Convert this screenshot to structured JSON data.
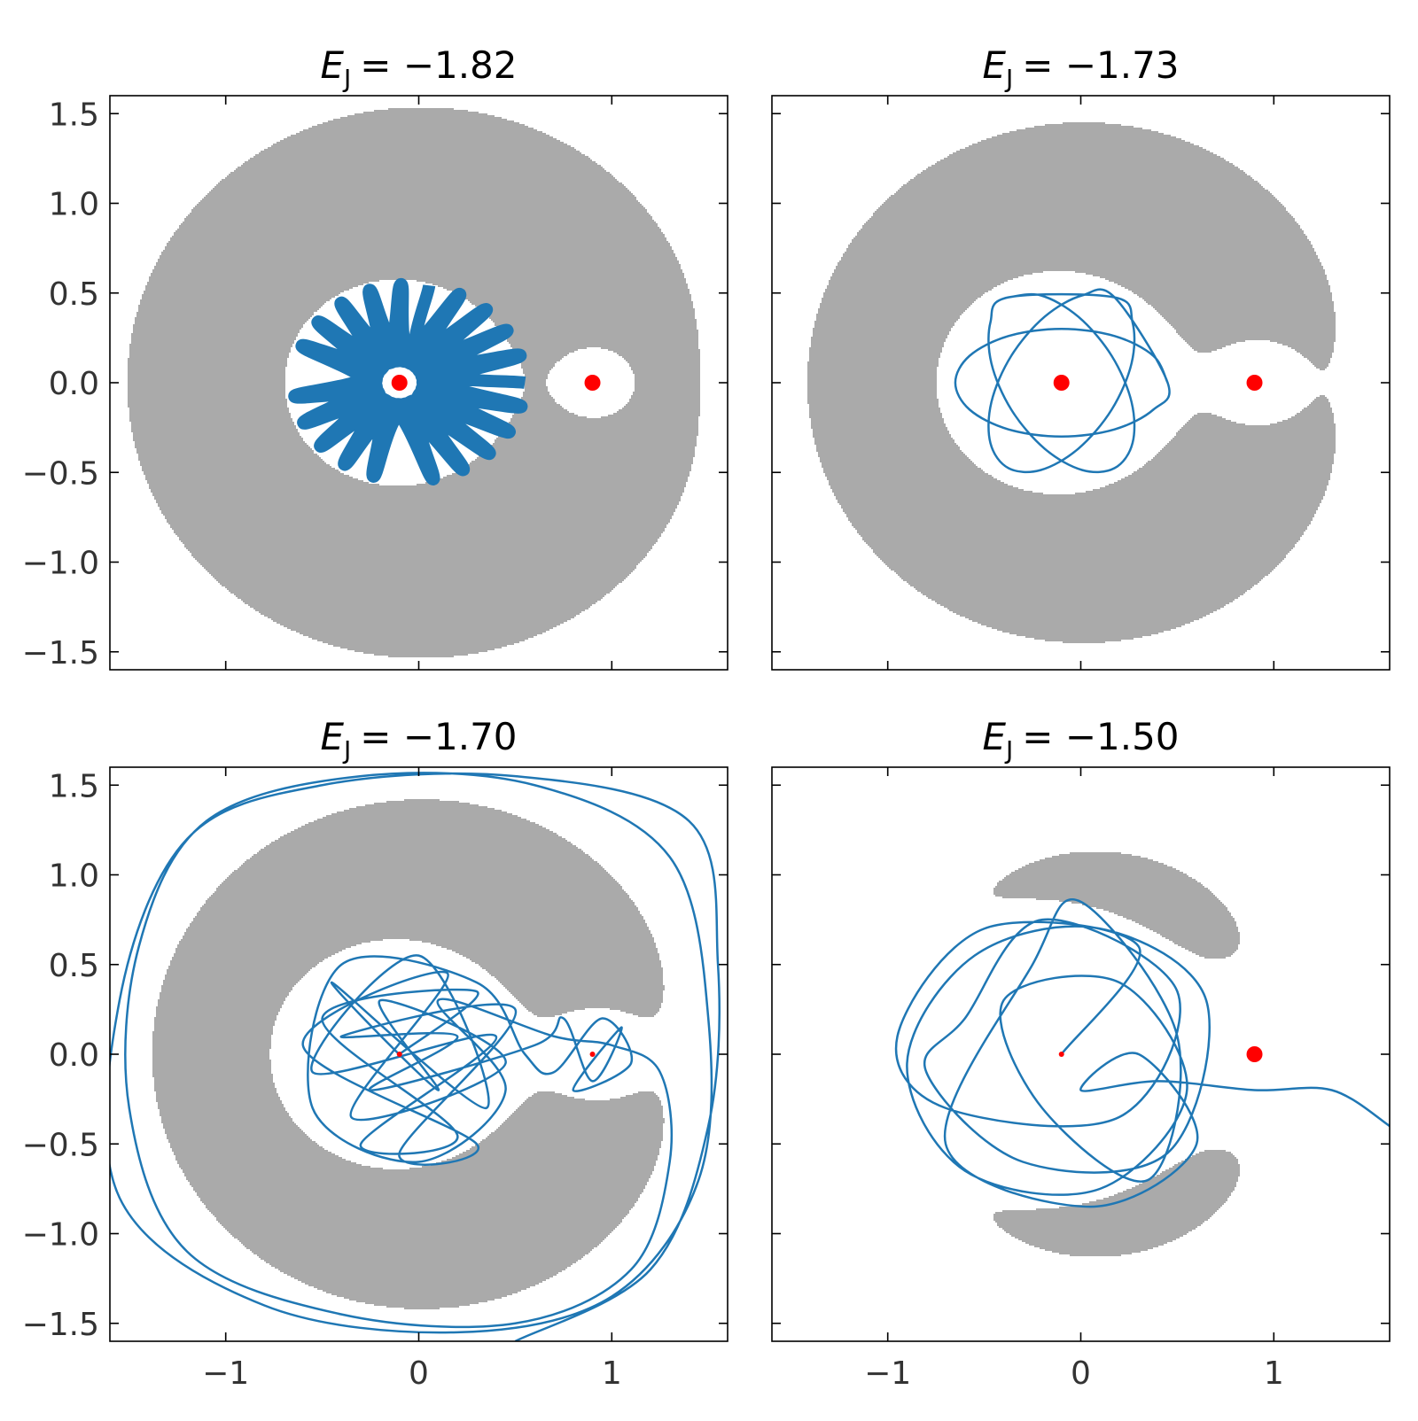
{
  "chart_data": [
    {
      "type": "orbit",
      "title": {
        "symbol": "E",
        "subscript": "J",
        "rest": "= −1.82"
      },
      "energy": -1.82,
      "xlim": [
        -1.6,
        1.6
      ],
      "ylim": [
        -1.6,
        1.6
      ],
      "xticks": [
        -1,
        0,
        1
      ],
      "yticks": [
        {
          "value": -1.5,
          "label": "−1.5"
        },
        {
          "value": -1.0,
          "label": "−1.0"
        },
        {
          "value": -0.5,
          "label": "−0.5"
        },
        {
          "value": 0.0,
          "label": "0.0"
        },
        {
          "value": 0.5,
          "label": "0.5"
        },
        {
          "value": 1.0,
          "label": "1.0"
        },
        {
          "value": 1.5,
          "label": "1.5"
        }
      ],
      "region_color": "#aaaaaa",
      "masses": {
        "color": "red",
        "x": [
          -0.1,
          0.9
        ],
        "y": [
          0,
          0
        ],
        "sizes": [
          9,
          9
        ]
      },
      "orbit": {
        "color": "#1f77b4",
        "line_width": 14,
        "x": [
          0.55,
          -0.018,
          -0.092,
          -0.193,
          -0.644,
          -0.169,
          0.075,
          0.003,
          0.527,
          -0.046,
          -0.255,
          -0.211,
          -0.598,
          -0.139,
          0.231,
          0.016,
          0.459,
          -0.077,
          -0.403,
          -0.219,
          -0.51,
          -0.106,
          0.367,
          0.02,
          0.351,
          -0.11,
          -0.523,
          -0.219,
          -0.385,
          -0.073,
          0.47,
          0.015,
          0.213,
          -0.143,
          -0.606,
          -0.209,
          -0.235,
          -0.042,
          0.532,
          0.001,
          0.054
        ],
        "y": [
          0,
          0.088,
          0.549,
          0.075,
          -0.076,
          -0.098,
          -0.538,
          -0.062,
          0.152,
          0.107,
          0.517,
          0.047,
          -0.224,
          -0.114,
          -0.486,
          -0.031,
          0.292,
          0.118,
          0.445,
          0.015,
          -0.354,
          -0.12,
          -0.395,
          0.002,
          0.409,
          0.12,
          0.339,
          -0.019,
          -0.456,
          -0.117,
          -0.275,
          0.035,
          0.494,
          0.112,
          0.206,
          -0.051,
          -0.523,
          -0.105,
          -0.133,
          0.065,
          0.542
        ]
      }
    },
    {
      "type": "orbit",
      "title": {
        "symbol": "E",
        "subscript": "J",
        "rest": "= −1.73"
      },
      "energy": -1.73,
      "xlim": [
        -1.6,
        1.6
      ],
      "ylim": [
        -1.6,
        1.6
      ],
      "xticks": [
        -1,
        0,
        1
      ],
      "yticks": [
        -1.5,
        -1.0,
        -0.5,
        0.0,
        0.5,
        1.0,
        1.5
      ],
      "region_color": "#aaaaaa",
      "masses": {
        "color": "red",
        "x": [
          -0.1,
          0.9
        ],
        "y": [
          0,
          0
        ],
        "sizes": [
          9,
          9
        ]
      },
      "orbit": {
        "color": "#1f77b4",
        "line_width": 2.5,
        "x": [
          0.45,
          0.376,
          0.175,
          -0.1,
          -0.375,
          -0.576,
          -0.65,
          -0.576,
          -0.375,
          -0.1,
          0.175,
          0.376,
          0.45,
          0.175,
          0.008,
          -0.187,
          -0.36,
          -0.463,
          -0.468,
          -0.375,
          -0.208,
          -0.013,
          0.16,
          0.263,
          0.268,
          0.175,
          -0.375,
          -0.468,
          -0.463,
          -0.36,
          -0.187,
          0.008,
          0.175,
          0.268,
          0.263,
          0.16,
          -0.013,
          -0.208,
          -0.375
        ],
        "y": [
          0,
          0.15,
          0.26,
          0.3,
          0.26,
          0.15,
          0,
          -0.15,
          -0.26,
          -0.3,
          -0.26,
          -0.15,
          0,
          0.476,
          0.487,
          0.368,
          0.15,
          -0.108,
          -0.337,
          -0.476,
          -0.487,
          -0.368,
          -0.15,
          0.108,
          0.337,
          0.476,
          0.476,
          0.337,
          0.108,
          -0.15,
          -0.368,
          -0.487,
          -0.476,
          -0.337,
          -0.108,
          0.15,
          0.368,
          0.487,
          0.476
        ]
      }
    },
    {
      "type": "orbit",
      "title": {
        "symbol": "E",
        "subscript": "J",
        "rest": "= −1.70"
      },
      "energy": -1.7,
      "xlim": [
        -1.6,
        1.6
      ],
      "ylim": [
        -1.6,
        1.6
      ],
      "xticks": [
        {
          "value": -1,
          "label": "−1"
        },
        {
          "value": 0,
          "label": "0"
        },
        {
          "value": 1,
          "label": "1"
        }
      ],
      "yticks": [
        {
          "value": -1.5,
          "label": "−1.5"
        },
        {
          "value": -1.0,
          "label": "−1.0"
        },
        {
          "value": -0.5,
          "label": "−0.5"
        },
        {
          "value": 0.0,
          "label": "0.0"
        },
        {
          "value": 0.5,
          "label": "0.5"
        },
        {
          "value": 1.0,
          "label": "1.0"
        },
        {
          "value": 1.5,
          "label": "1.5"
        }
      ],
      "region_color": "#aaaaaa",
      "masses": {
        "color": "red",
        "x": [
          -0.1,
          0.9
        ],
        "y": [
          0,
          0
        ],
        "sizes": [
          3,
          3
        ]
      },
      "orbit": {
        "color": "#1f77b4",
        "line_width": 2.5,
        "x": [
          -0.1,
          0.3,
          -0.5,
          0.2,
          -0.3,
          0.4,
          -0.55,
          0.0,
          0.35,
          -0.45,
          0.1,
          -0.2,
          0.45,
          -0.35,
          0.15,
          -0.6,
          0.3,
          -0.1,
          0.5,
          -0.4,
          0.2,
          -0.25,
          0.6,
          0.75,
          0.9,
          1.05,
          0.8,
          1.1,
          0.95,
          0.7,
          0.55,
          0.3,
          -0.4,
          -0.55,
          0.0,
          0.45,
          0.1,
          0.7,
          1.0,
          1.25,
          1.3,
          1.1,
          0.5,
          -0.4,
          -1.2,
          -1.5,
          -1.45,
          -1.1,
          -0.3,
          0.6,
          1.3,
          1.5,
          1.45,
          1.0,
          0.2,
          -0.8,
          -1.55,
          -1.55,
          -1.2,
          -0.5,
          0.5,
          1.4,
          1.55,
          1.5,
          1.2,
          0.5
        ],
        "y": [
          0.0,
          0.35,
          0.2,
          -0.45,
          -0.5,
          0.1,
          -0.1,
          0.55,
          -0.3,
          0.4,
          -0.2,
          0.3,
          -0.05,
          -0.35,
          0.45,
          0.05,
          -0.5,
          -0.55,
          0.25,
          0.1,
          0.1,
          -0.2,
          0.05,
          0.2,
          -0.15,
          0.15,
          -0.2,
          -0.05,
          0.2,
          -0.1,
          0.0,
          0.4,
          0.5,
          -0.3,
          -0.6,
          -0.2,
          0.3,
          0.1,
          0.05,
          -0.1,
          -0.6,
          -1.2,
          -1.5,
          -1.45,
          -1.1,
          -0.3,
          0.6,
          1.3,
          1.55,
          1.5,
          1.1,
          0.2,
          -0.7,
          -1.35,
          -1.55,
          -1.4,
          -0.8,
          0.3,
          1.2,
          1.5,
          1.55,
          1.3,
          0.5,
          -0.4,
          -1.2,
          -1.6
        ]
      }
    },
    {
      "type": "orbit",
      "title": {
        "symbol": "E",
        "subscript": "J",
        "rest": "= −1.50"
      },
      "energy": -1.5,
      "xlim": [
        -1.6,
        1.6
      ],
      "ylim": [
        -1.6,
        1.6
      ],
      "xticks": [
        {
          "value": -1,
          "label": "−1"
        },
        {
          "value": 0,
          "label": "0"
        },
        {
          "value": 1,
          "label": "1"
        }
      ],
      "yticks": [
        -1.5,
        -1.0,
        -0.5,
        0.0,
        0.5,
        1.0,
        1.5
      ],
      "region_color": "#aaaaaa",
      "masses": {
        "color": "red",
        "x": [
          -0.1,
          0.9
        ],
        "y": [
          0,
          0
        ],
        "sizes": [
          3,
          9
        ]
      },
      "orbit": {
        "color": "#1f77b4",
        "line_width": 2.5,
        "x": [
          -0.1,
          0.3,
          -0.5,
          -0.95,
          -0.7,
          0.2,
          0.5,
          -0.2,
          -0.6,
          -0.8,
          -0.3,
          0.45,
          0.65,
          0.1,
          -0.55,
          -0.9,
          -0.6,
          0.1,
          0.55,
          0.2,
          -0.4,
          -0.2,
          0.35,
          0.5,
          0.0,
          -0.25,
          -0.7,
          0.05,
          0.6,
          0.3,
          0.0,
          0.4,
          0.9,
          1.3,
          1.6
        ],
        "y": [
          0,
          0.6,
          0.7,
          0.1,
          -0.3,
          -0.35,
          0.35,
          0.75,
          0.2,
          -0.1,
          -0.6,
          -0.55,
          0.3,
          0.7,
          0.55,
          -0.05,
          -0.65,
          -0.75,
          -0.2,
          0.4,
          0.3,
          -0.3,
          -0.7,
          0.1,
          0.85,
          0.5,
          -0.5,
          -0.85,
          -0.5,
          0.0,
          -0.2,
          -0.15,
          -0.2,
          -0.2,
          -0.4
        ]
      }
    }
  ]
}
